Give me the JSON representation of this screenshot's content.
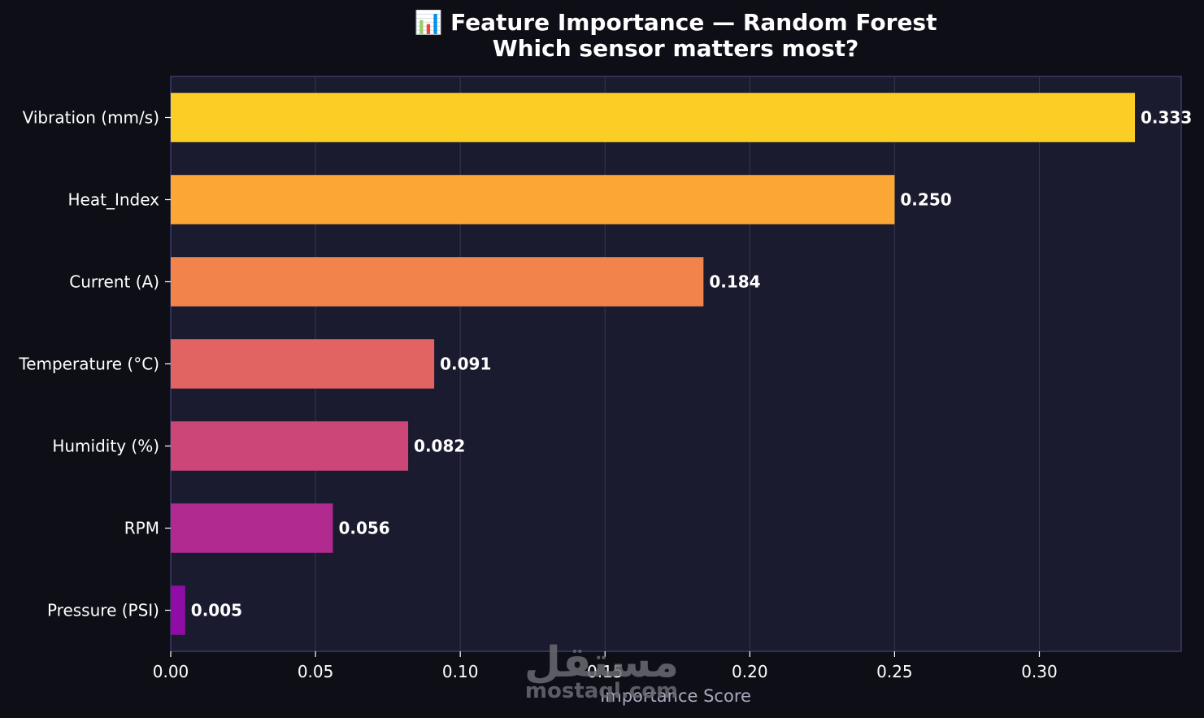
{
  "chart_data": {
    "type": "bar",
    "orientation": "horizontal",
    "title": "📊 Feature Importance — Random Forest",
    "subtitle": "Which sensor matters most?",
    "xlabel": "Importance Score",
    "ylabel": "",
    "xlim": [
      0,
      0.349
    ],
    "x_ticks": [
      "0.00",
      "0.05",
      "0.10",
      "0.15",
      "0.20",
      "0.25",
      "0.30"
    ],
    "x_tick_values": [
      0,
      0.05,
      0.1,
      0.15,
      0.2,
      0.25,
      0.3
    ],
    "grid": true,
    "legend": "none",
    "categories": [
      "Vibration (mm/s)",
      "Heat_Index",
      "Current (A)",
      "Temperature (°C)",
      "Humidity (%)",
      "RPM",
      "Pressure (PSI)"
    ],
    "values": [
      0.333,
      0.25,
      0.184,
      0.091,
      0.082,
      0.056,
      0.005
    ],
    "value_labels": [
      "0.333",
      "0.250",
      "0.184",
      "0.091",
      "0.082",
      "0.056",
      "0.005"
    ],
    "colors": [
      "#fccd25",
      "#fca636",
      "#f2844b",
      "#e16462",
      "#cc4778",
      "#b12a90",
      "#8f0da4"
    ]
  },
  "colors": {
    "background": "#0e0e17",
    "plot_background": "#1b1b2f",
    "plot_border": "#3a3a66",
    "grid": "#35354f"
  },
  "watermark": {
    "arabic": "مستقل",
    "latin": "mostaql.com"
  }
}
